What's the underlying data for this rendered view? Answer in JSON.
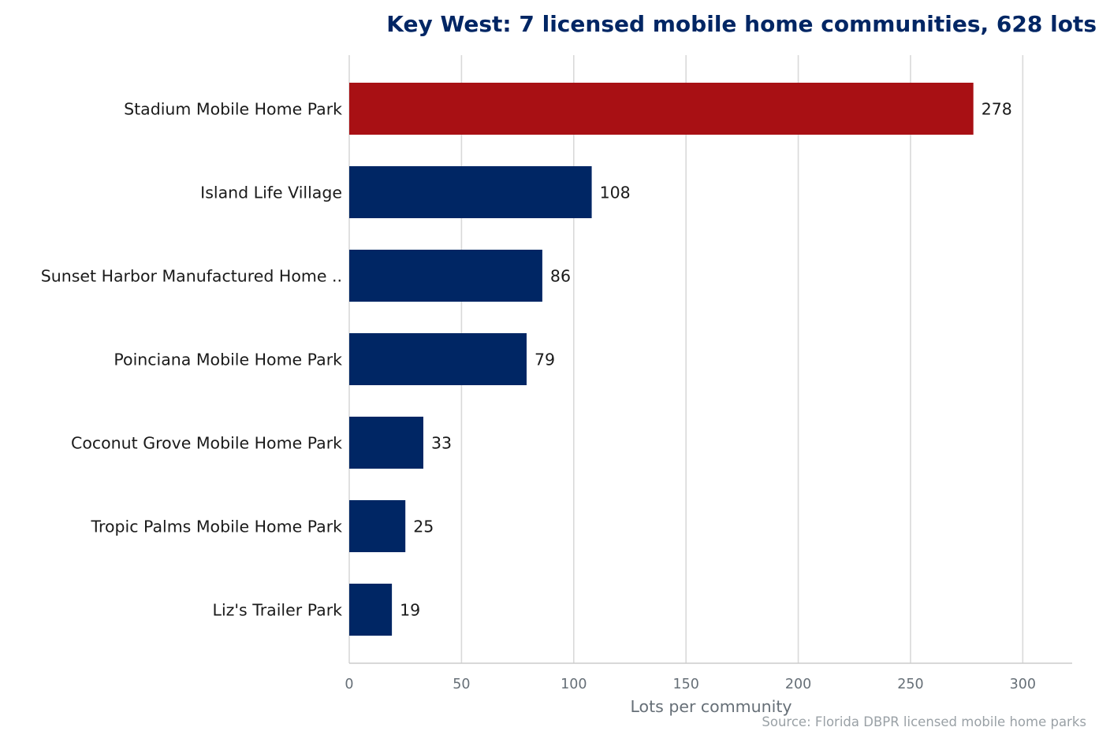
{
  "chart_data": {
    "type": "bar",
    "orientation": "horizontal",
    "title": "Key West: 7 licensed mobile home communities, 628 lots",
    "xlabel": "Lots per community",
    "ylabel": "",
    "source": "Source: Florida DBPR licensed mobile home parks",
    "categories": [
      "Stadium Mobile Home Park",
      "Island Life Village",
      "Sunset Harbor Manufactured Home ..",
      "Poinciana Mobile Home Park",
      "Coconut Grove Mobile Home Park",
      "Tropic Palms Mobile Home Park",
      "Liz's Trailer Park"
    ],
    "values": [
      278,
      108,
      86,
      79,
      33,
      25,
      19
    ],
    "value_labels": [
      "278",
      "108",
      "86",
      "79",
      "33",
      "25",
      "19"
    ],
    "xlim": [
      0,
      322
    ],
    "xticks": [
      0,
      50,
      100,
      150,
      200,
      250,
      300
    ],
    "xtick_labels": [
      "0",
      "50",
      "100",
      "150",
      "200",
      "250",
      "300"
    ],
    "grid": "vertical",
    "legend": "none",
    "highlight_index": 0,
    "colors": {
      "title": "#002664",
      "bar": "#002664",
      "highlight": "#a81014",
      "grid": "#d9d9d9",
      "axis": "#cccccc",
      "tick_text": "#666f77",
      "source_text": "#9aa1a6"
    }
  }
}
